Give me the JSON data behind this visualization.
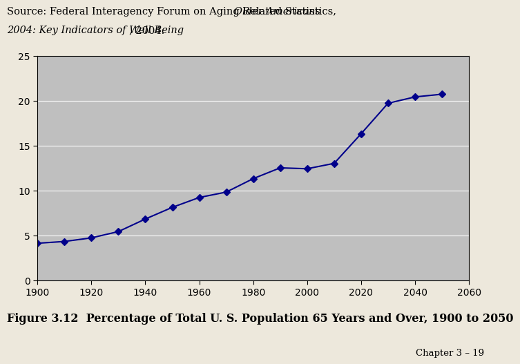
{
  "x_values": [
    1900,
    1910,
    1920,
    1930,
    1940,
    1950,
    1960,
    1970,
    1980,
    1990,
    2000,
    2010,
    2020,
    2030,
    2040,
    2050
  ],
  "y_values": [
    4.1,
    4.3,
    4.7,
    5.4,
    6.8,
    8.1,
    9.2,
    9.8,
    11.3,
    12.5,
    12.4,
    13.0,
    16.3,
    19.7,
    20.4,
    20.7
  ],
  "xlim": [
    1900,
    2060
  ],
  "ylim": [
    0,
    25
  ],
  "xticks": [
    1900,
    1920,
    1940,
    1960,
    1980,
    2000,
    2020,
    2040,
    2060
  ],
  "yticks": [
    0,
    5,
    10,
    15,
    20,
    25
  ],
  "line_color": "#00008B",
  "marker_color": "#00008B",
  "plot_bg_color": "#BFBFBF",
  "outer_bg_color": "#EDE8DC",
  "figure_label": "Figure 3.12  Percentage of Total U. S. Population 65 Years and Over, 1900 to 2050",
  "chapter_label": "Chapter 3 – 19",
  "source_fontsize": 10.5,
  "label_fontsize": 11.5,
  "chapter_fontsize": 9.5,
  "tick_fontsize": 10
}
